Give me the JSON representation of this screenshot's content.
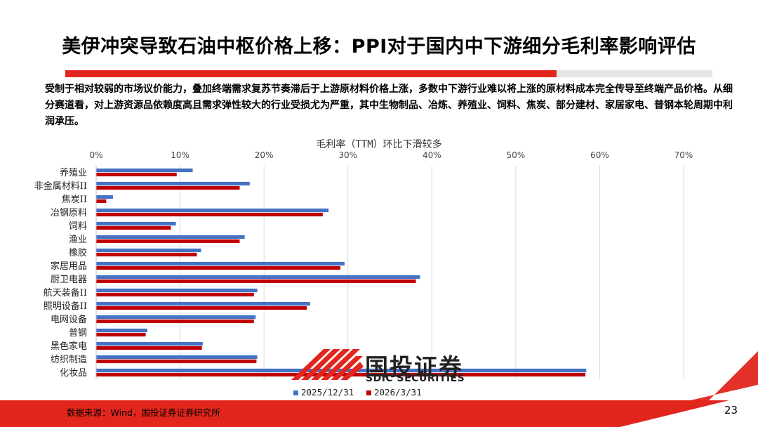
{
  "page": {
    "title": "美伊冲突导致石油中枢价格上移：PPI对于国内中下游细分毛利率影响评估",
    "description": "受制于相对较弱的市场议价能力，叠加终端需求复苏节奏滞后于上游原材料价格上涨，多数中下游行业难以将上涨的原材料成本完全传导至终端产品价格。从细分赛道看，对上游资源品依赖度高且需求弹性较大的行业受损尤为严重，其中生物制品、冶炼、养殖业、饲料、焦炭、部分建材、家居家电、普钢本轮周期中利润承压。",
    "source": "数据来源：Wind，国投证券证券研究所",
    "page_number": "23",
    "logo_cn": "国投证券",
    "logo_en": "SDIC SECURITIES"
  },
  "colors": {
    "series_1": "#4472c4",
    "series_2": "#c00000",
    "accent": "#e3261d"
  },
  "chart_data": {
    "type": "bar",
    "orientation": "horizontal",
    "title": "毛利率（TTM）环比下滑较多",
    "categories": [
      "养殖业",
      "非金属材料II",
      "焦炭II",
      "冶钢原料",
      "饲料",
      "渔业",
      "橡胶",
      "家居用品",
      "厨卫电器",
      "航天装备II",
      "照明设备II",
      "电网设备",
      "普钢",
      "黑色家电",
      "纺织制造",
      "化妆品"
    ],
    "series": [
      {
        "name": "2025/12/31",
        "values": [
          11.5,
          18.3,
          2.0,
          27.7,
          9.5,
          17.7,
          12.5,
          29.6,
          38.6,
          19.2,
          25.5,
          19.0,
          6.1,
          12.7,
          19.2,
          58.4
        ]
      },
      {
        "name": "2026/3/31",
        "values": [
          9.6,
          17.1,
          1.2,
          27.0,
          8.9,
          17.1,
          12.0,
          29.1,
          38.1,
          18.8,
          25.1,
          18.8,
          5.9,
          12.6,
          19.1,
          58.3
        ]
      }
    ],
    "xlim": [
      0,
      70
    ],
    "xticks": [
      "0%",
      "10%",
      "20%",
      "30%",
      "40%",
      "50%",
      "60%",
      "70%"
    ],
    "grid": true,
    "legend": "bottom"
  }
}
